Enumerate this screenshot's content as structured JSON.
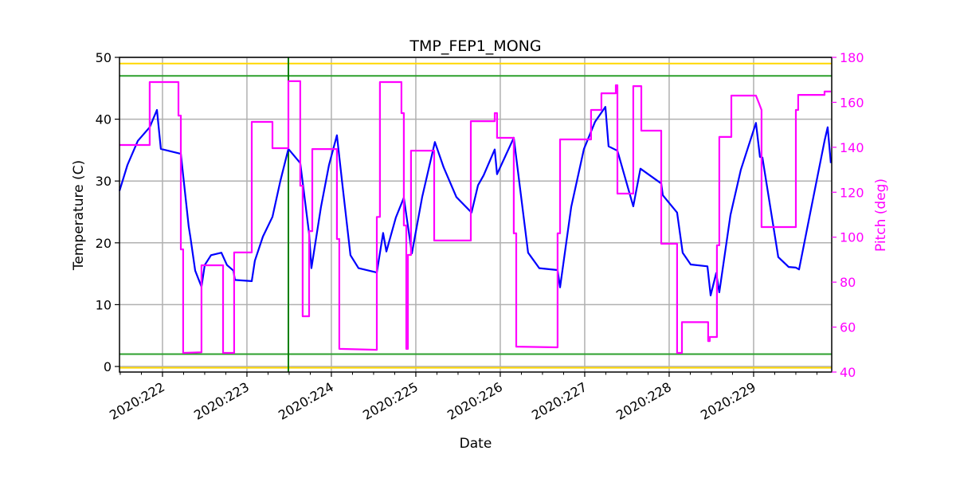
{
  "chart_data": {
    "type": "line",
    "title": "TMP_FEP1_MONG",
    "xlabel": "Date",
    "ylabel": "Temperature (C)",
    "ylabel_right": "Pitch (deg)",
    "xlim": [
      221.491,
      229.925
    ],
    "ylim": [
      -0.9,
      50
    ],
    "ylim_right": [
      40,
      180
    ],
    "grid": true,
    "xticks": [
      222,
      223,
      224,
      225,
      226,
      227,
      228,
      229
    ],
    "xtick_labels": [
      "2020:222",
      "2020:223",
      "2020:224",
      "2020:225",
      "2020:226",
      "2020:227",
      "2020:228",
      "2020:229"
    ],
    "yticks": [
      0,
      10,
      20,
      30,
      40,
      50
    ],
    "ytick_labels": [
      "0",
      "10",
      "20",
      "30",
      "40",
      "50"
    ],
    "yticks_right": [
      40,
      60,
      80,
      100,
      120,
      140,
      160,
      180
    ],
    "ytick_labels_right": [
      "40",
      "60",
      "80",
      "100",
      "120",
      "140",
      "160",
      "180"
    ],
    "colors": {
      "temperature": "#0000ff",
      "pitch": "#ff00ff",
      "planning_limit": "#2ca02c",
      "caution_limit": "#ffd700",
      "now_line": "#008000",
      "grid": "#b0b0b0"
    },
    "limit_lines": [
      {
        "name": "caution-high",
        "value": 49,
        "color": "#ffd700"
      },
      {
        "name": "planning-high",
        "value": 47,
        "color": "#2ca02c"
      },
      {
        "name": "planning-low",
        "value": 2,
        "color": "#2ca02c"
      },
      {
        "name": "caution-low",
        "value": -0.2,
        "color": "#ffd700"
      }
    ],
    "vertical_line": 223.491,
    "series": [
      {
        "name": "TMP_FEP1_MONG",
        "axis": "left",
        "points": [
          [
            221.491,
            28.4
          ],
          [
            221.585,
            32.6
          ],
          [
            221.708,
            36.5
          ],
          [
            221.849,
            38.7
          ],
          [
            221.934,
            41.5
          ],
          [
            221.981,
            35.2
          ],
          [
            222.217,
            34.4
          ],
          [
            222.311,
            22.6
          ],
          [
            222.33,
            21.0
          ],
          [
            222.387,
            15.5
          ],
          [
            222.462,
            12.9
          ],
          [
            222.5,
            16.4
          ],
          [
            222.575,
            18.0
          ],
          [
            222.698,
            18.4
          ],
          [
            222.764,
            16.4
          ],
          [
            222.84,
            15.5
          ],
          [
            222.858,
            14.0
          ],
          [
            223.057,
            13.8
          ],
          [
            223.094,
            17.1
          ],
          [
            223.189,
            21.0
          ],
          [
            223.302,
            24.2
          ],
          [
            223.396,
            30.0
          ],
          [
            223.491,
            35.2
          ],
          [
            223.632,
            32.9
          ],
          [
            223.736,
            21.5
          ],
          [
            223.764,
            15.9
          ],
          [
            223.877,
            25.8
          ],
          [
            223.972,
            32.6
          ],
          [
            224.066,
            37.4
          ],
          [
            224.132,
            29.3
          ],
          [
            224.226,
            18.0
          ],
          [
            224.321,
            15.9
          ],
          [
            224.538,
            15.2
          ],
          [
            224.613,
            21.6
          ],
          [
            224.651,
            18.6
          ],
          [
            224.764,
            24.1
          ],
          [
            224.858,
            27.3
          ],
          [
            224.953,
            18.3
          ],
          [
            225.075,
            27.4
          ],
          [
            225.226,
            36.3
          ],
          [
            225.33,
            32.2
          ],
          [
            225.481,
            27.4
          ],
          [
            225.66,
            24.9
          ],
          [
            225.736,
            29.3
          ],
          [
            225.802,
            30.9
          ],
          [
            225.934,
            35.1
          ],
          [
            225.962,
            31.1
          ],
          [
            226.16,
            37.0
          ],
          [
            226.33,
            18.4
          ],
          [
            226.462,
            15.9
          ],
          [
            226.679,
            15.6
          ],
          [
            226.708,
            12.8
          ],
          [
            226.84,
            25.8
          ],
          [
            226.991,
            35.2
          ],
          [
            227.123,
            39.6
          ],
          [
            227.245,
            42.0
          ],
          [
            227.283,
            35.6
          ],
          [
            227.387,
            34.9
          ],
          [
            227.575,
            25.9
          ],
          [
            227.66,
            32.0
          ],
          [
            227.906,
            29.6
          ],
          [
            227.925,
            27.7
          ],
          [
            228.094,
            24.9
          ],
          [
            228.16,
            18.4
          ],
          [
            228.255,
            16.5
          ],
          [
            228.453,
            16.2
          ],
          [
            228.491,
            11.5
          ],
          [
            228.557,
            15.1
          ],
          [
            228.594,
            12.0
          ],
          [
            228.726,
            24.5
          ],
          [
            228.849,
            31.8
          ],
          [
            229.028,
            39.4
          ],
          [
            229.075,
            33.9
          ],
          [
            229.104,
            33.8
          ],
          [
            229.292,
            17.7
          ],
          [
            229.415,
            16.1
          ],
          [
            229.5,
            16.0
          ],
          [
            229.538,
            15.7
          ],
          [
            229.698,
            26.7
          ],
          [
            229.84,
            36.5
          ],
          [
            229.877,
            38.7
          ],
          [
            229.915,
            32.9
          ]
        ]
      },
      {
        "name": "Pitch",
        "axis": "right",
        "points": [
          [
            221.491,
            141.0
          ],
          [
            221.849,
            141.0
          ],
          [
            221.849,
            169.0
          ],
          [
            222.189,
            169.0
          ],
          [
            222.189,
            154.1
          ],
          [
            222.217,
            154.1
          ],
          [
            222.217,
            94.6
          ],
          [
            222.245,
            94.6
          ],
          [
            222.245,
            48.5
          ],
          [
            222.462,
            48.8
          ],
          [
            222.462,
            87.5
          ],
          [
            222.717,
            87.5
          ],
          [
            222.717,
            48.5
          ],
          [
            222.849,
            48.5
          ],
          [
            222.849,
            93.2
          ],
          [
            223.057,
            93.2
          ],
          [
            223.057,
            151.3
          ],
          [
            223.302,
            151.3
          ],
          [
            223.302,
            139.6
          ],
          [
            223.491,
            139.6
          ],
          [
            223.491,
            169.4
          ],
          [
            223.632,
            169.4
          ],
          [
            223.632,
            122.9
          ],
          [
            223.66,
            122.9
          ],
          [
            223.66,
            64.8
          ],
          [
            223.736,
            64.8
          ],
          [
            223.736,
            102.7
          ],
          [
            223.774,
            102.7
          ],
          [
            223.774,
            139.2
          ],
          [
            224.066,
            139.2
          ],
          [
            224.066,
            99.2
          ],
          [
            224.094,
            99.2
          ],
          [
            224.094,
            50.3
          ],
          [
            224.538,
            49.9
          ],
          [
            224.538,
            109.0
          ],
          [
            224.575,
            109.0
          ],
          [
            224.575,
            169.0
          ],
          [
            224.83,
            169.0
          ],
          [
            224.83,
            155.2
          ],
          [
            224.858,
            155.2
          ],
          [
            224.858,
            105.2
          ],
          [
            224.887,
            105.2
          ],
          [
            224.887,
            50.3
          ],
          [
            224.906,
            50.3
          ],
          [
            224.906,
            92.1
          ],
          [
            224.943,
            92.1
          ],
          [
            224.943,
            138.5
          ],
          [
            225.217,
            138.5
          ],
          [
            225.217,
            98.5
          ],
          [
            225.651,
            98.5
          ],
          [
            225.651,
            151.6
          ],
          [
            225.934,
            151.6
          ],
          [
            225.934,
            155.2
          ],
          [
            225.962,
            155.2
          ],
          [
            225.962,
            144.2
          ],
          [
            226.16,
            144.2
          ],
          [
            226.16,
            101.7
          ],
          [
            226.189,
            101.7
          ],
          [
            226.189,
            51.3
          ],
          [
            226.679,
            51.0
          ],
          [
            226.679,
            101.7
          ],
          [
            226.708,
            101.7
          ],
          [
            226.708,
            143.5
          ],
          [
            227.075,
            143.5
          ],
          [
            227.075,
            156.6
          ],
          [
            227.198,
            156.6
          ],
          [
            227.198,
            164.0
          ],
          [
            227.368,
            164.0
          ],
          [
            227.368,
            167.6
          ],
          [
            227.387,
            167.6
          ],
          [
            227.387,
            119.4
          ],
          [
            227.575,
            119.4
          ],
          [
            227.575,
            167.2
          ],
          [
            227.67,
            167.2
          ],
          [
            227.67,
            147.4
          ],
          [
            227.906,
            147.4
          ],
          [
            227.906,
            97.1
          ],
          [
            228.094,
            97.1
          ],
          [
            228.094,
            48.5
          ],
          [
            228.151,
            48.5
          ],
          [
            228.151,
            62.2
          ],
          [
            228.462,
            62.2
          ],
          [
            228.462,
            53.8
          ],
          [
            228.481,
            53.8
          ],
          [
            228.481,
            55.6
          ],
          [
            228.566,
            55.6
          ],
          [
            228.566,
            96.4
          ],
          [
            228.594,
            96.4
          ],
          [
            228.594,
            144.6
          ],
          [
            228.736,
            144.6
          ],
          [
            228.736,
            163.0
          ],
          [
            229.028,
            163.0
          ],
          [
            229.066,
            159.4
          ],
          [
            229.094,
            156.6
          ],
          [
            229.094,
            104.5
          ],
          [
            229.5,
            104.5
          ],
          [
            229.5,
            156.6
          ],
          [
            229.528,
            156.6
          ],
          [
            229.528,
            163.3
          ],
          [
            229.84,
            163.3
          ],
          [
            229.84,
            164.8
          ],
          [
            229.915,
            164.8
          ]
        ]
      }
    ]
  }
}
